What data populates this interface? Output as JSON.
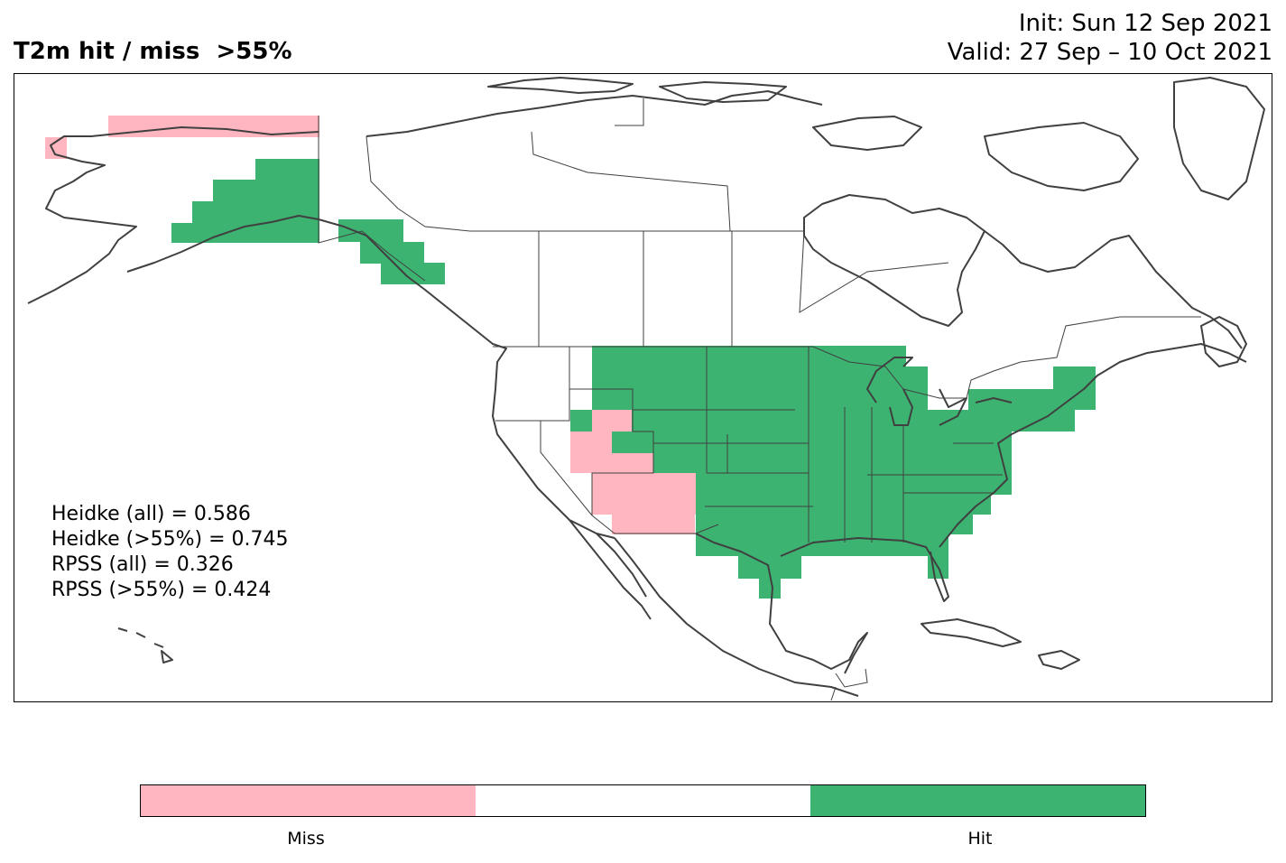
{
  "title_left": "T2m hit / miss  >55%",
  "title_right": {
    "init": "Init: Sun 12 Sep 2021",
    "valid": "Valid: 27 Sep – 10 Oct 2021"
  },
  "scores": [
    "Heidke (all) = 0.586",
    "Heidke (>55%) = 0.745",
    "RPSS (all) = 0.326",
    "RPSS (>55%) = 0.424"
  ],
  "colors": {
    "miss": "#ffb6c1",
    "hit": "#3cb371",
    "neutral": "#ffffff",
    "coast": "#404040"
  },
  "colorbar": {
    "segments": [
      "miss",
      "neutral",
      "hit"
    ],
    "labels": {
      "miss": "Miss",
      "hit": "Hit"
    }
  }
}
